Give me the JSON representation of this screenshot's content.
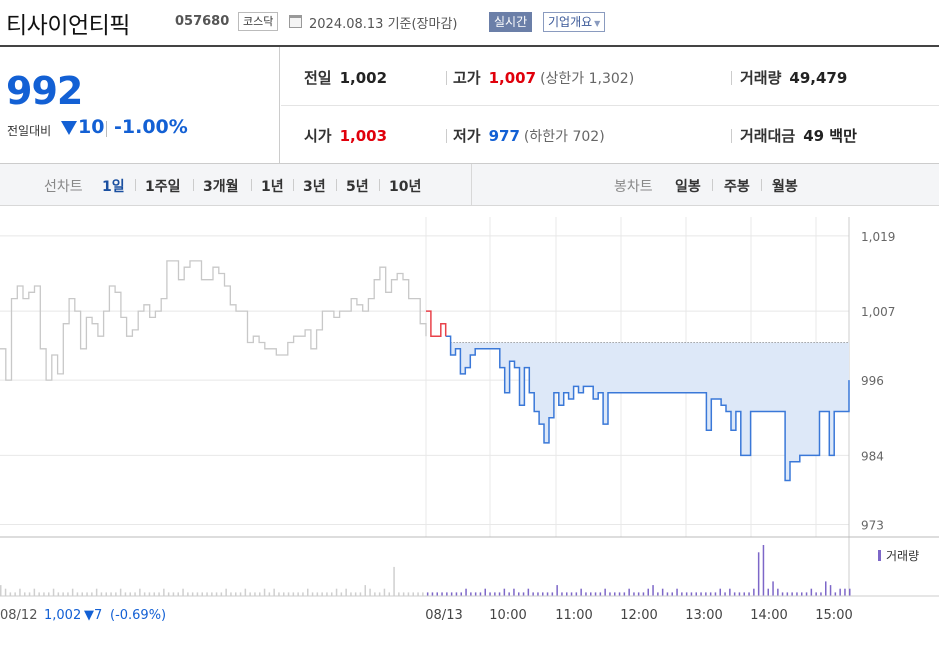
{
  "header": {
    "name": "티사이언티픽",
    "code": "057680",
    "market": "코스닥",
    "date_text": "2024.08.13  기준(장마감)",
    "realtime_label": "실시간",
    "overview_label": "기업개요"
  },
  "quote": {
    "price": "992",
    "change_label": "전일대비",
    "change_value": "10",
    "change_pct": "-1.00%",
    "prev_close_label": "전일",
    "prev_close": "1,002",
    "high_label": "고가",
    "high": "1,007",
    "upper_limit": "(상한가 1,302)",
    "volume_label": "거래량",
    "volume": "49,479",
    "open_label": "시가",
    "open": "1,003",
    "low_label": "저가",
    "low": "977",
    "lower_limit": "(하한가 702)",
    "amount_label": "거래대금",
    "amount": "49 백만"
  },
  "tabs": {
    "line_label": "선차트",
    "line_items": [
      "1일",
      "1주일",
      "3개월",
      "1년",
      "3년",
      "5년",
      "10년"
    ],
    "line_active": "1일",
    "candle_label": "봉차트",
    "candle_items": [
      "일봉",
      "주봉",
      "월봉"
    ]
  },
  "chart_data": {
    "type": "line",
    "ylim": [
      971,
      1022
    ],
    "yticks": [
      "1,019",
      "1,007",
      "996",
      "984",
      "973"
    ],
    "ytick_values": [
      1019,
      1007,
      996,
      984,
      973
    ],
    "xticks": [
      "08/13",
      "10:00",
      "11:00",
      "12:00",
      "13:00",
      "14:00",
      "15:00"
    ],
    "prev_close": 1002,
    "volume_label": "거래량",
    "prev_day_info": {
      "date": "08/12",
      "close": "1,002",
      "change": "▼7",
      "pct": "(-0.69%)"
    },
    "colors": {
      "prev_day": "#c8c8c8",
      "today": "#3a78d8",
      "above_prev": "#e8424a",
      "fill": "#dde8f8",
      "volume": "#7d67c8"
    },
    "prev_day_series": {
      "name": "08/12",
      "values": [
        1001,
        996,
        1009,
        1011,
        1009,
        1010,
        1011,
        1001,
        996,
        1000,
        997,
        1005,
        1009,
        1007,
        1001,
        1006,
        1005,
        1003,
        1007,
        1011,
        1010,
        1006,
        1003,
        1004,
        1007,
        1008,
        1006,
        1007,
        1009,
        1015,
        1015,
        1012,
        1014,
        1015,
        1015,
        1012,
        1012,
        1014,
        1013,
        1011,
        1008,
        1007,
        1007,
        1002,
        1003,
        1002,
        1001,
        1001,
        1000,
        1000,
        1002,
        1003,
        1003,
        1004,
        1001,
        1004,
        1007,
        1007,
        1006,
        1007,
        1007,
        1009,
        1008,
        1007,
        1009,
        1012,
        1014,
        1010,
        1012,
        1013,
        1012,
        1009,
        1009,
        1005,
        1003
      ]
    },
    "today_series": {
      "name": "08/13",
      "values": [
        1007,
        1003,
        1003,
        1005,
        1003,
        1000,
        1001,
        997,
        998,
        1000,
        1001,
        1001,
        1001,
        1001,
        1001,
        998,
        994,
        999,
        998,
        992,
        998,
        994,
        991,
        989,
        986,
        990,
        994,
        992,
        994,
        993,
        995,
        994,
        995,
        995,
        993,
        994,
        989,
        994,
        994,
        994,
        994,
        994,
        994,
        994,
        994,
        994,
        994,
        994,
        994,
        994,
        994,
        994,
        994,
        994,
        994,
        994,
        994,
        988,
        993,
        993,
        992,
        991,
        988,
        991,
        984,
        984,
        991,
        991,
        991,
        991,
        991,
        991,
        991,
        980,
        983,
        983,
        984,
        984,
        984,
        984,
        991,
        991,
        984,
        991,
        991,
        991,
        996
      ]
    },
    "volume_values": [
      3,
      2,
      1,
      1,
      2,
      1,
      1,
      2,
      1,
      1,
      1,
      2,
      1,
      1,
      1,
      2,
      1,
      1,
      1,
      1,
      2,
      1,
      1,
      1,
      1,
      2,
      1,
      1,
      1,
      2,
      1,
      1,
      1,
      1,
      2,
      1,
      1,
      1,
      2,
      1,
      1,
      1,
      1,
      1,
      1,
      1,
      1,
      2,
      1,
      1,
      1,
      2,
      1,
      1,
      1,
      2,
      1,
      2,
      1,
      1,
      1,
      1,
      1,
      1,
      2,
      1,
      1,
      1,
      1,
      1,
      2,
      1,
      2,
      1,
      1,
      1,
      3,
      2,
      1,
      1,
      2,
      1,
      8,
      1,
      1,
      1,
      1,
      1,
      1,
      1,
      1,
      1,
      1,
      1,
      1,
      1,
      1,
      2,
      1,
      1,
      1,
      2,
      1,
      1,
      1,
      2,
      1,
      2,
      1,
      1,
      2,
      1,
      1,
      1,
      1,
      1,
      3,
      1,
      1,
      1,
      1,
      2,
      1,
      1,
      1,
      1,
      2,
      1,
      1,
      1,
      1,
      2,
      1,
      1,
      1,
      2,
      3,
      1,
      2,
      1,
      1,
      2,
      1,
      1,
      1,
      1,
      1,
      1,
      1,
      1,
      2,
      1,
      2,
      1,
      1,
      1,
      1,
      2,
      12,
      14,
      2,
      4,
      2,
      1,
      1,
      1,
      1,
      1,
      1,
      2,
      1,
      1,
      4,
      3,
      1,
      2,
      2,
      2
    ]
  }
}
